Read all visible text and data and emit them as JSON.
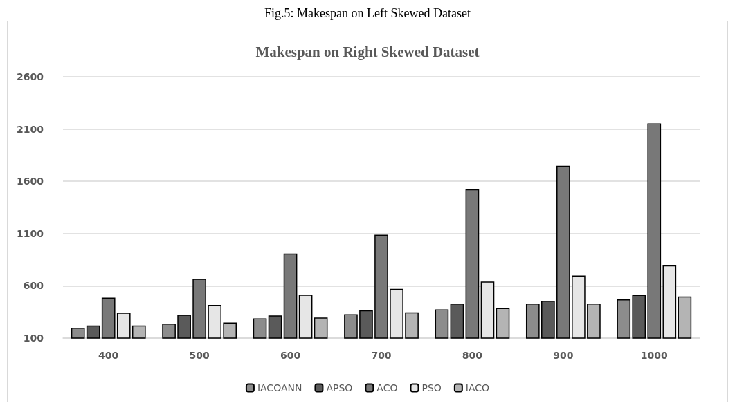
{
  "chart_data": {
    "type": "bar",
    "title": "Makespan on Right Skewed Dataset",
    "annotations": [
      "Fig.5: Makespan on Left Skewed Dataset"
    ],
    "categories": [
      "400",
      "500",
      "600",
      "700",
      "800",
      "900",
      "1000"
    ],
    "series": [
      {
        "name": "IACOANN",
        "color": "#8c8c8c",
        "values": [
          200,
          239,
          289,
          328,
          374,
          430,
          470
        ]
      },
      {
        "name": "APSO",
        "color": "#5a5a5a",
        "values": [
          220,
          324,
          317,
          367,
          430,
          457,
          513
        ]
      },
      {
        "name": "ACO",
        "color": "#787878",
        "values": [
          487,
          667,
          909,
          1089,
          1524,
          1748,
          2154
        ]
      },
      {
        "name": "PSO",
        "color": "#e6e6e6",
        "values": [
          343,
          417,
          515,
          572,
          641,
          698,
          796
        ]
      },
      {
        "name": "IACO",
        "color": "#b4b4b4",
        "values": [
          220,
          248,
          296,
          346,
          387,
          430,
          498
        ]
      }
    ],
    "ylim": [
      100,
      2600
    ],
    "yticks": [
      100,
      600,
      1100,
      1600,
      2100,
      2600
    ],
    "grid": "y",
    "legend": "bottom"
  }
}
